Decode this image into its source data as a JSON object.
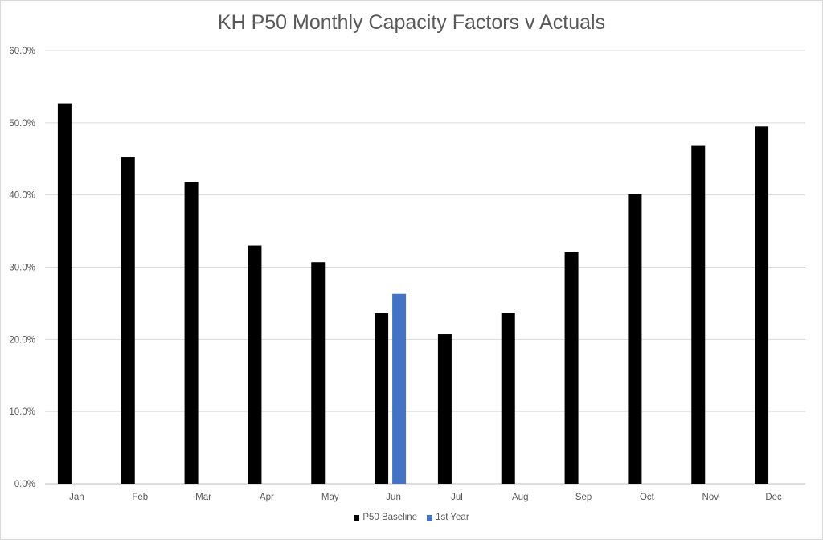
{
  "chart_data": {
    "type": "bar",
    "title": "KH P50 Monthly Capacity Factors v Actuals",
    "xlabel": "",
    "ylabel": "",
    "categories": [
      "Jan",
      "Feb",
      "Mar",
      "Apr",
      "May",
      "Jun",
      "Jul",
      "Aug",
      "Sep",
      "Oct",
      "Nov",
      "Dec"
    ],
    "ylim": [
      0,
      60
    ],
    "yticks": [
      "0.0%",
      "10.0%",
      "20.0%",
      "30.0%",
      "40.0%",
      "50.0%",
      "60.0%"
    ],
    "grid": true,
    "legend_position": "bottom",
    "series": [
      {
        "name": "P50 Baseline",
        "color": "#000000",
        "values": [
          52.7,
          45.3,
          41.8,
          33.0,
          30.7,
          23.6,
          20.7,
          23.7,
          32.1,
          40.1,
          46.8,
          49.5
        ]
      },
      {
        "name": "1st Year",
        "color": "#4472c4",
        "values": [
          null,
          null,
          null,
          null,
          null,
          26.3,
          null,
          null,
          null,
          null,
          null,
          null
        ]
      }
    ]
  }
}
